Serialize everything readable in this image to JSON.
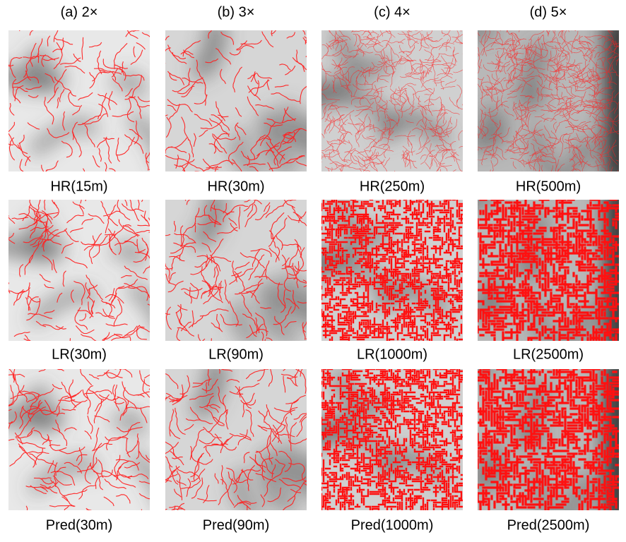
{
  "columns": [
    {
      "title": "(a) 2×",
      "panels": [
        "HR(15m)",
        "LR(30m)",
        "Pred(30m)"
      ]
    },
    {
      "title": "(b) 3×",
      "panels": [
        "HR(30m)",
        "LR(90m)",
        "Pred(90m)"
      ]
    },
    {
      "title": "(c) 4×",
      "panels": [
        "HR(250m)",
        "LR(1000m)",
        "Pred(1000m)"
      ]
    },
    {
      "title": "(d) 5×",
      "panels": [
        "HR(500m)",
        "LR(2500m)",
        "Pred(2500m)"
      ]
    }
  ]
}
